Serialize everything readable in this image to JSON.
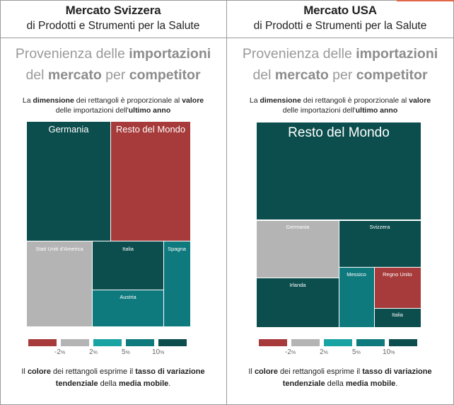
{
  "colors": {
    "neg2": "#a73a3a",
    "pos2": "#b4b4b4",
    "pos5": "#1aa3a3",
    "pos10": "#0e7a7e",
    "top": "#0b4e4d"
  },
  "legend": {
    "labels": [
      "-2",
      "2",
      "5",
      "10"
    ],
    "unit": "%"
  },
  "panels": [
    {
      "id": "svizzera",
      "header_title": "Mercato Svizzera",
      "header_sub": "di Prodotti e Strumenti per la Salute",
      "title_1_a": "Provenienza delle ",
      "title_1_b": "importazioni",
      "title_2_a": "del ",
      "title_2_b": "mercato",
      "title_2_c": " per ",
      "title_2_d": "competitor",
      "note_top": {
        "p1": "La ",
        "b1": "dimensione",
        "p2": " dei rettangoli è proporzionale al ",
        "b2": "valore",
        "p3": "delle importazioni dell'",
        "b3": "ultimo anno"
      },
      "note_bottom": {
        "p1": "Il ",
        "b1": "colore",
        "p2": " dei rettangoli esprime il ",
        "b2": "tasso di variazione",
        "b3": "tendenziale",
        "p3": " della ",
        "b4": "media mobile",
        "p4": "."
      }
    },
    {
      "id": "usa",
      "header_title": "Mercato USA",
      "header_sub": "di Prodotti e Strumenti per la Salute",
      "title_1_a": "Provenienza delle ",
      "title_1_b": "importazioni",
      "title_2_a": "del ",
      "title_2_b": "mercato",
      "title_2_c": " per ",
      "title_2_d": "competitor",
      "note_top": {
        "p1": "La ",
        "b1": "dimensione",
        "p2": " dei rettangoli è proporzionale al ",
        "b2": "valore",
        "p3": "delle importazioni dell'",
        "b3": "ultimo anno"
      },
      "note_bottom": {
        "p1": "Il ",
        "b1": "colore",
        "p2": " dei rettangoli esprime il ",
        "b2": "tasso di variazione",
        "b3": "tendenziale",
        "p3": " della ",
        "b4": "media mobile",
        "p4": "."
      }
    }
  ],
  "chart_data": [
    {
      "type": "treemap",
      "title": "Mercato Svizzera",
      "tiles": [
        {
          "name": "Germania",
          "color": "top"
        },
        {
          "name": "Resto del Mondo",
          "color": "neg2"
        },
        {
          "name": "Stati Uniti d'America",
          "color": "pos2"
        },
        {
          "name": "Italia",
          "color": "top"
        },
        {
          "name": "Spagna",
          "color": "pos10"
        },
        {
          "name": "Austria",
          "color": "pos10"
        }
      ]
    },
    {
      "type": "treemap",
      "title": "Mercato USA",
      "tiles": [
        {
          "name": "Resto del Mondo",
          "color": "top"
        },
        {
          "name": "Germania",
          "color": "pos2"
        },
        {
          "name": "Svizzera",
          "color": "top"
        },
        {
          "name": "Irlanda",
          "color": "top"
        },
        {
          "name": "Messico",
          "color": "pos10"
        },
        {
          "name": "Regno Unito",
          "color": "neg2"
        },
        {
          "name": "Italia",
          "color": "top"
        }
      ]
    }
  ]
}
